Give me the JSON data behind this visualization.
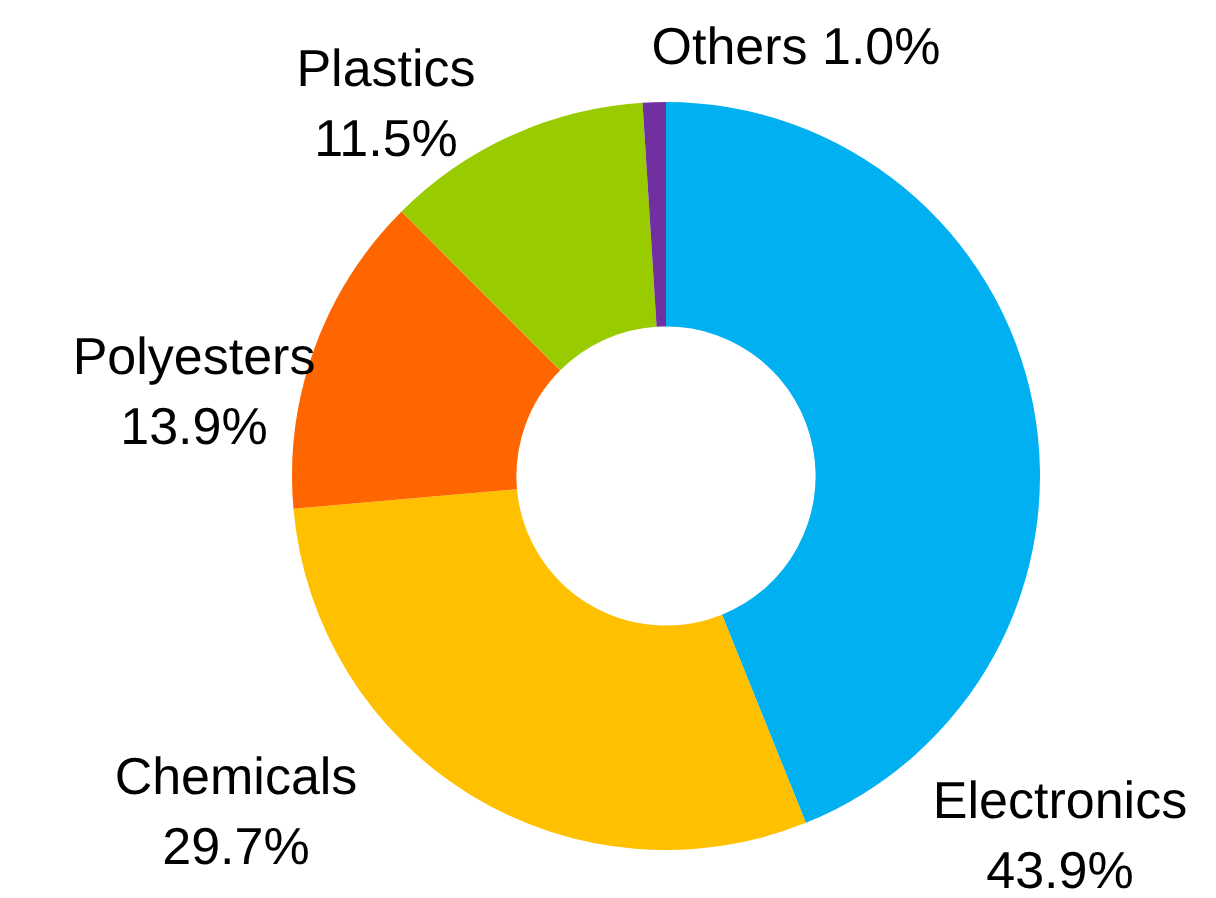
{
  "chart_data": {
    "type": "donut",
    "categories": [
      "Electronics",
      "Chemicals",
      "Polyesters",
      "Plastics",
      "Others"
    ],
    "values": [
      43.9,
      29.7,
      13.9,
      11.5,
      1.0
    ],
    "colors": [
      "#00b0f0",
      "#ffc000",
      "#ff6600",
      "#99cc00",
      "#7030a0"
    ],
    "value_labels": [
      "43.9%",
      "29.7%",
      "13.9%",
      "11.5%",
      "1.0%"
    ],
    "legend": false
  }
}
